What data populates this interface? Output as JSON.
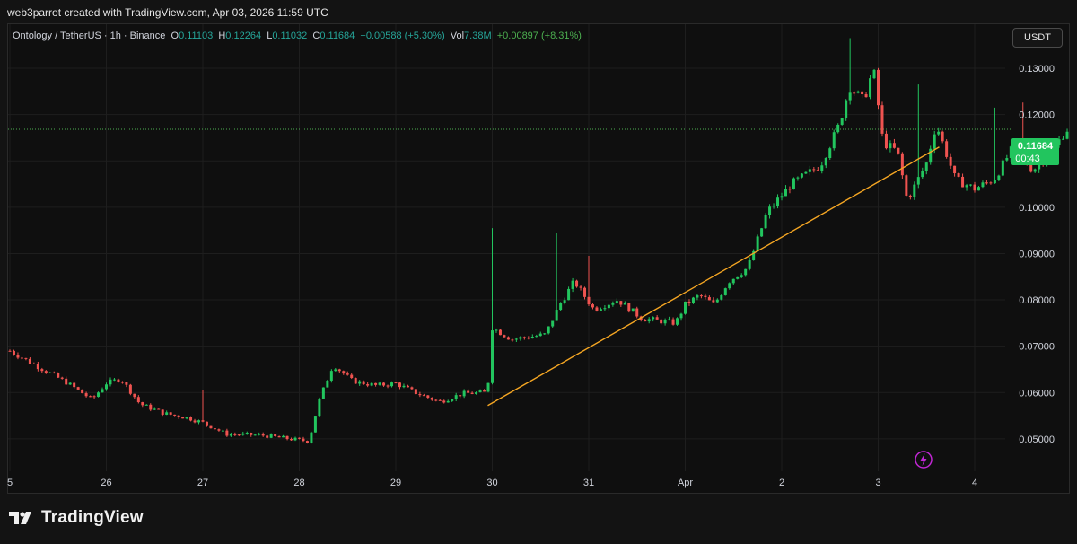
{
  "header": {
    "credit": "web3parrot created with TradingView.com, Apr 03, 2026 11:59 UTC"
  },
  "legend": {
    "symbol": "Ontology / TetherUS · 1h · Binance",
    "o_label": "O",
    "o_value": "0.11103",
    "h_label": "H",
    "h_value": "0.12264",
    "l_label": "L",
    "l_value": "0.11032",
    "c_label": "C",
    "c_value": "0.11684",
    "change": "+0.00588 (+5.30%)",
    "vol_label": "Vol",
    "vol_value": "7.38M",
    "vol_change": "+0.00897 (+8.31%)"
  },
  "currency_button": "USDT",
  "price_tag": {
    "price": "0.11684",
    "countdown": "00:43"
  },
  "footer": {
    "logo_text": "TradingView"
  },
  "colors": {
    "up": "#26a69a",
    "up_bright": "#22c55e",
    "down": "#ef5350",
    "trendline": "#f5a623",
    "grid": "#1e1e1e",
    "price_line": "#4caf50",
    "alert_icon": "#c026d3"
  },
  "chart_data": {
    "type": "candlestick",
    "x_labels": [
      "5",
      "26",
      "27",
      "28",
      "29",
      "30",
      "31",
      "Apr",
      "2",
      "3",
      "4"
    ],
    "y_ticks": [
      "0.05000",
      "0.06000",
      "0.07000",
      "0.08000",
      "0.09000",
      "0.10000",
      "0.11000",
      "0.12000",
      "0.13000"
    ],
    "ylim": [
      0.043,
      0.1395
    ],
    "current_price": 0.11684,
    "trendline": {
      "from": {
        "x": "30",
        "price": 0.0572
      },
      "to": {
        "x": "3",
        "price": 0.113
      }
    },
    "path_points": [
      [
        25.0,
        0.069
      ],
      [
        25.3,
        0.0655
      ],
      [
        25.6,
        0.062
      ],
      [
        25.85,
        0.0585
      ],
      [
        26.0,
        0.062
      ],
      [
        26.15,
        0.063
      ],
      [
        26.35,
        0.0575
      ],
      [
        26.6,
        0.0555
      ],
      [
        26.85,
        0.0545
      ],
      [
        27.0,
        0.0535
      ],
      [
        27.25,
        0.051
      ],
      [
        27.6,
        0.0508
      ],
      [
        27.9,
        0.05
      ],
      [
        28.1,
        0.0495
      ],
      [
        28.2,
        0.058
      ],
      [
        28.35,
        0.066
      ],
      [
        28.55,
        0.0625
      ],
      [
        28.8,
        0.0615
      ],
      [
        29.0,
        0.062
      ],
      [
        29.2,
        0.06
      ],
      [
        29.45,
        0.058
      ],
      [
        29.7,
        0.0598
      ],
      [
        29.95,
        0.06
      ],
      [
        30.0,
        0.074
      ],
      [
        30.2,
        0.0715
      ],
      [
        30.55,
        0.0725
      ],
      [
        30.7,
        0.079
      ],
      [
        30.85,
        0.084
      ],
      [
        31.05,
        0.078
      ],
      [
        31.3,
        0.08
      ],
      [
        31.55,
        0.076
      ],
      [
        31.9,
        0.075
      ],
      [
        32.0,
        0.079
      ],
      [
        32.15,
        0.081
      ],
      [
        32.3,
        0.079
      ],
      [
        32.45,
        0.084
      ],
      [
        32.65,
        0.087
      ],
      [
        32.85,
        0.099
      ],
      [
        33.1,
        0.105
      ],
      [
        33.4,
        0.109
      ],
      [
        33.6,
        0.118
      ],
      [
        33.7,
        0.126
      ],
      [
        33.85,
        0.123
      ],
      [
        33.95,
        0.13
      ],
      [
        34.05,
        0.114
      ],
      [
        34.2,
        0.112
      ],
      [
        34.3,
        0.1015
      ],
      [
        34.5,
        0.1095
      ],
      [
        34.6,
        0.118
      ],
      [
        34.8,
        0.106
      ],
      [
        35.0,
        0.104
      ],
      [
        35.2,
        0.106
      ],
      [
        35.4,
        0.113
      ],
      [
        35.6,
        0.108
      ],
      [
        35.8,
        0.112
      ],
      [
        35.95,
        0.1168
      ]
    ],
    "wick_spikes": [
      {
        "x": 30.0,
        "high": 0.0955
      },
      {
        "x": 30.65,
        "high": 0.0945
      },
      {
        "x": 31.0,
        "high": 0.0895
      },
      {
        "x": 27.0,
        "high": 0.0605
      },
      {
        "x": 33.7,
        "high": 0.1365
      },
      {
        "x": 34.4,
        "high": 0.1265
      },
      {
        "x": 35.2,
        "high": 0.1215
      },
      {
        "x": 35.5,
        "high": 0.1226
      }
    ]
  }
}
